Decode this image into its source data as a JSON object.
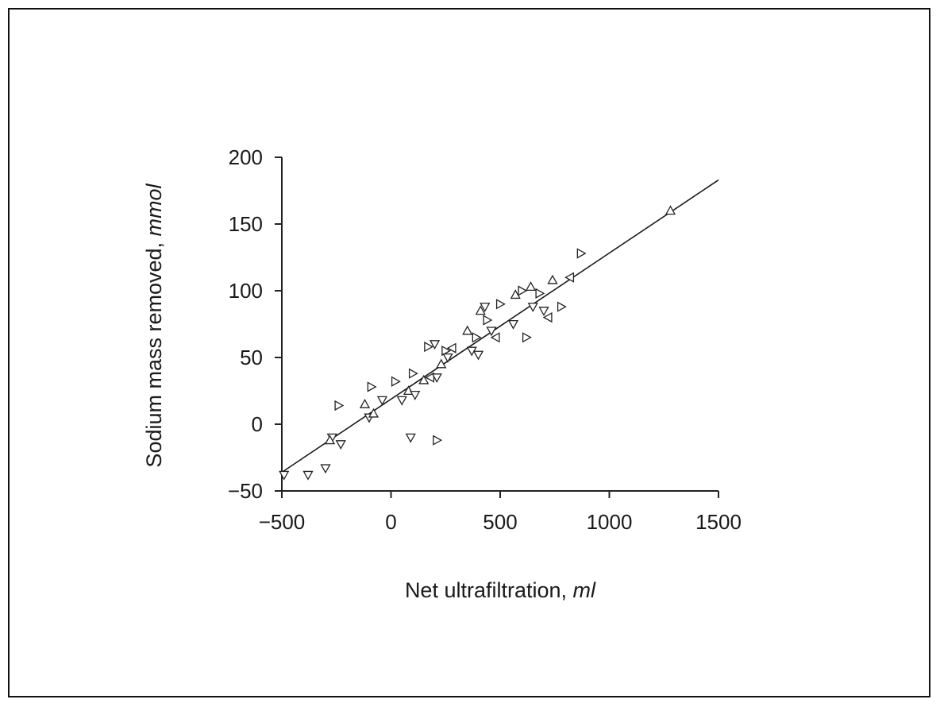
{
  "chart_data": {
    "type": "scatter",
    "title": "",
    "xlabel": "Net ultrafiltration,",
    "xlabel_unit": "ml",
    "ylabel": "Sodium mass removed,",
    "ylabel_unit": "mmol",
    "xlim": [
      -500,
      1500
    ],
    "ylim": [
      -50,
      200
    ],
    "xticks": [
      -500,
      0,
      500,
      1000,
      1500
    ],
    "xtick_labels": [
      "−500",
      "0",
      "500",
      "1000",
      "1500"
    ],
    "yticks": [
      -50,
      0,
      50,
      100,
      150,
      200
    ],
    "ytick_labels": [
      "−50",
      "0",
      "50",
      "100",
      "150",
      "200"
    ],
    "grid": false,
    "marker": "open-triangle",
    "points": [
      {
        "x": -490,
        "y": -38,
        "m": "down"
      },
      {
        "x": -380,
        "y": -38,
        "m": "down"
      },
      {
        "x": -300,
        "y": -33,
        "m": "down"
      },
      {
        "x": -270,
        "y": -10,
        "m": "down"
      },
      {
        "x": -280,
        "y": -12,
        "m": "up"
      },
      {
        "x": -230,
        "y": -15,
        "m": "down"
      },
      {
        "x": -240,
        "y": 14,
        "m": "right"
      },
      {
        "x": -120,
        "y": 15,
        "m": "up"
      },
      {
        "x": -90,
        "y": 28,
        "m": "right"
      },
      {
        "x": -100,
        "y": 5,
        "m": "down"
      },
      {
        "x": -80,
        "y": 8,
        "m": "up"
      },
      {
        "x": -40,
        "y": 18,
        "m": "down"
      },
      {
        "x": 20,
        "y": 32,
        "m": "right"
      },
      {
        "x": 50,
        "y": 18,
        "m": "down"
      },
      {
        "x": 80,
        "y": 25,
        "m": "up"
      },
      {
        "x": 100,
        "y": 38,
        "m": "right"
      },
      {
        "x": 110,
        "y": 22,
        "m": "down"
      },
      {
        "x": 90,
        "y": -10,
        "m": "down"
      },
      {
        "x": 210,
        "y": -12,
        "m": "right"
      },
      {
        "x": 150,
        "y": 33,
        "m": "up"
      },
      {
        "x": 180,
        "y": 35,
        "m": "left"
      },
      {
        "x": 210,
        "y": 35,
        "m": "down"
      },
      {
        "x": 170,
        "y": 58,
        "m": "right"
      },
      {
        "x": 200,
        "y": 60,
        "m": "down"
      },
      {
        "x": 230,
        "y": 45,
        "m": "up"
      },
      {
        "x": 250,
        "y": 55,
        "m": "right"
      },
      {
        "x": 260,
        "y": 50,
        "m": "down"
      },
      {
        "x": 280,
        "y": 57,
        "m": "left"
      },
      {
        "x": 350,
        "y": 70,
        "m": "up"
      },
      {
        "x": 370,
        "y": 55,
        "m": "down"
      },
      {
        "x": 390,
        "y": 65,
        "m": "right"
      },
      {
        "x": 400,
        "y": 52,
        "m": "down"
      },
      {
        "x": 410,
        "y": 85,
        "m": "up"
      },
      {
        "x": 430,
        "y": 88,
        "m": "down"
      },
      {
        "x": 440,
        "y": 78,
        "m": "right"
      },
      {
        "x": 460,
        "y": 70,
        "m": "down"
      },
      {
        "x": 480,
        "y": 65,
        "m": "left"
      },
      {
        "x": 500,
        "y": 90,
        "m": "right"
      },
      {
        "x": 560,
        "y": 75,
        "m": "down"
      },
      {
        "x": 570,
        "y": 97,
        "m": "up"
      },
      {
        "x": 600,
        "y": 100,
        "m": "right"
      },
      {
        "x": 620,
        "y": 65,
        "m": "right"
      },
      {
        "x": 640,
        "y": 103,
        "m": "up"
      },
      {
        "x": 650,
        "y": 88,
        "m": "down"
      },
      {
        "x": 680,
        "y": 98,
        "m": "right"
      },
      {
        "x": 700,
        "y": 85,
        "m": "down"
      },
      {
        "x": 720,
        "y": 80,
        "m": "left"
      },
      {
        "x": 740,
        "y": 108,
        "m": "up"
      },
      {
        "x": 780,
        "y": 88,
        "m": "right"
      },
      {
        "x": 820,
        "y": 110,
        "m": "left"
      },
      {
        "x": 870,
        "y": 128,
        "m": "right"
      },
      {
        "x": 1280,
        "y": 160,
        "m": "up"
      }
    ],
    "fit_line": {
      "x": [
        -500,
        1500
      ],
      "y": [
        -36,
        183
      ]
    }
  }
}
